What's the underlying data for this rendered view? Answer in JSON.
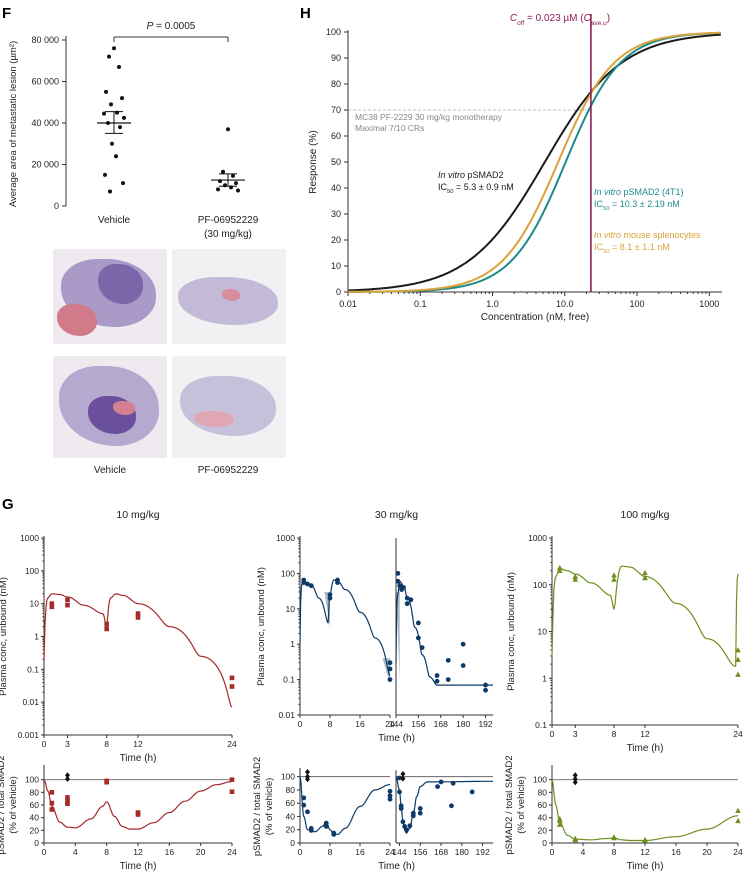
{
  "colors": {
    "red": "#a52a2a",
    "navy": "#0d3a66",
    "olive": "#6d8f1e",
    "black": "#1a1a1a",
    "teal": "#1f8a8a",
    "gold": "#d9a23a",
    "purple": "#8b1d5a",
    "grey": "#9a9a9a"
  },
  "panels": {
    "F": "F",
    "G": "G",
    "H": "H"
  },
  "chart_data": [
    {
      "id": "F-scatter",
      "type": "scatter",
      "ylabel": "Average area of metastatic lesion (µm²)",
      "ylim": [
        0,
        80000
      ],
      "yticks": [
        "0",
        "20 000",
        "40 000",
        "60 000",
        "80 000"
      ],
      "categories": [
        "Vehicle",
        "PF-06952229",
        "(30 mg/kg)"
      ],
      "significance": {
        "label": "P = 0.0005"
      },
      "series": [
        {
          "name": "Vehicle",
          "mean": 40000,
          "sem_low": 35000,
          "sem_high": 45500,
          "values": [
            76000,
            72000,
            67000,
            55000,
            52000,
            49000,
            45000,
            44500,
            42500,
            40000,
            38000,
            30000,
            24000,
            15000,
            11000,
            7000
          ]
        },
        {
          "name": "PF-06952229",
          "mean": 12500,
          "sem_low": 9500,
          "sem_high": 15500,
          "values": [
            37000,
            16500,
            14500,
            12000,
            11000,
            10000,
            9000,
            8000,
            7500
          ]
        }
      ]
    },
    {
      "id": "H-curves",
      "type": "line",
      "xlabel": "Concentration (nM, free)",
      "ylabel": "Response (%)",
      "xscale": "log",
      "xlim": [
        0.01,
        1500
      ],
      "ylim": [
        0,
        100
      ],
      "xticks": [
        "0.01",
        "0.1",
        "1.0",
        "10.0",
        "100",
        "1000"
      ],
      "yticks": [
        "0",
        "10",
        "20",
        "30",
        "40",
        "50",
        "60",
        "70",
        "80",
        "90",
        "100"
      ],
      "series": [
        {
          "name": "In vitro pSMAD2",
          "ic50": 5.3,
          "hill": 0.82,
          "color_key": "black"
        },
        {
          "name": "In vitro pSMAD2 (4T1)",
          "ic50": 10.3,
          "hill": 1.15,
          "color_key": "teal"
        },
        {
          "name": "In vitro mouse splenocytes",
          "ic50": 8.1,
          "hill": 1.12,
          "color_key": "gold"
        }
      ],
      "vline": {
        "x": 23
      },
      "hline": {
        "y": 70
      },
      "annotations": {
        "coff_a": "C",
        "coff_sub": "off",
        "coff_b": " = 0.023 µM (",
        "coff_c": "C",
        "coff_sub2": "ave,u",
        "coff_d": ")",
        "mc38_1": "MC38 PF-2229 30 mg/kg monotherapy",
        "mc38_2": "Maximal 7/10 CRs",
        "black_1a": "In vitro",
        "black_1b": " pSMAD2",
        "black_2a": "IC",
        "black_2sub": "50",
        "black_2b": " = 5.3 ± 0.9 nM",
        "teal_1a": "In vitro",
        "teal_1b": " pSMAD2 (4T1)",
        "teal_2a": "IC",
        "teal_2sub": "50",
        "teal_2b": " = 10.3 ± 2.19 nM",
        "gold_1a": "In vitro",
        "gold_1b": " mouse splenocytes",
        "gold_2a": "IC",
        "gold_2sub": "50",
        "gold_2b": " = 8.1 ± 1.1 nM"
      }
    },
    {
      "id": "G-pk-10",
      "type": "line",
      "title": "10 mg/kg",
      "xlabel": "Time (h)",
      "ylabel": "Plasma conc, unbound (nM)",
      "yscale": "log",
      "ylim": [
        0.001,
        1000
      ],
      "xlim": [
        0,
        24
      ],
      "yticks": [
        "0.001",
        "0.01",
        "0.1",
        "1",
        "10",
        "100",
        "1000"
      ],
      "xticks": [
        "0",
        "3",
        "8",
        "12",
        "24"
      ],
      "curve": [
        [
          0,
          0.2
        ],
        [
          0.5,
          15
        ],
        [
          1,
          20
        ],
        [
          2,
          19
        ],
        [
          3,
          16
        ],
        [
          5,
          9
        ],
        [
          7.5,
          5
        ],
        [
          8,
          1.8
        ],
        [
          8.5,
          15
        ],
        [
          9.2,
          20
        ],
        [
          10,
          18
        ],
        [
          12,
          10
        ],
        [
          16,
          2
        ],
        [
          20,
          0.25
        ],
        [
          24,
          0.007
        ]
      ],
      "points": [
        [
          1,
          10
        ],
        [
          1,
          8
        ],
        [
          3,
          13
        ],
        [
          3,
          9
        ],
        [
          8,
          2.4
        ],
        [
          8,
          1.7
        ],
        [
          12,
          5
        ],
        [
          12,
          3.8
        ],
        [
          24,
          0.055
        ],
        [
          24,
          0.03
        ]
      ]
    },
    {
      "id": "G-pk-30",
      "type": "line",
      "title": "30 mg/kg",
      "xlabel": "Time (h)",
      "ylabel": "Plasma conc, unbound (nM)",
      "yscale": "log",
      "ylim": [
        0.01,
        1000
      ],
      "yticks": [
        "0.01",
        "0.1",
        "1",
        "10",
        "100",
        "1000"
      ],
      "segment_a": {
        "xlim": [
          0,
          24
        ],
        "xticks": [
          "0",
          "8",
          "16",
          "24"
        ],
        "curve": [
          [
            0,
            1
          ],
          [
            0.5,
            50
          ],
          [
            1,
            60
          ],
          [
            2,
            55
          ],
          [
            3,
            45
          ],
          [
            5,
            20
          ],
          [
            7.5,
            4
          ],
          [
            8,
            25
          ],
          [
            9,
            65
          ],
          [
            10,
            60
          ],
          [
            12,
            35
          ],
          [
            16,
            8
          ],
          [
            20,
            1.5
          ],
          [
            24,
            0.13
          ]
        ],
        "bands": [
          [
            6.5,
            8,
            3,
            30
          ],
          [
            22,
            24,
            0.08,
            0.4
          ]
        ],
        "points": [
          [
            1,
            65
          ],
          [
            1,
            55
          ],
          [
            2,
            50
          ],
          [
            3,
            45
          ],
          [
            8,
            25
          ],
          [
            8,
            20
          ],
          [
            10,
            65
          ],
          [
            10,
            55
          ],
          [
            24,
            0.3
          ],
          [
            24,
            0.2
          ],
          [
            24,
            0.1
          ]
        ]
      },
      "segment_b": {
        "xlim": [
          144,
          196
        ],
        "xticks": [
          "144",
          "156",
          "168",
          "180",
          "192"
        ],
        "curve": [
          [
            144,
            0.3
          ],
          [
            145,
            25
          ],
          [
            146,
            60
          ],
          [
            148,
            45
          ],
          [
            150,
            20
          ],
          [
            154,
            3
          ],
          [
            158,
            0.5
          ],
          [
            162,
            0.12
          ],
          [
            166,
            0.07
          ],
          [
            196,
            0.07
          ]
        ],
        "bands": [
          [
            144,
            146,
            0.1,
            30
          ]
        ],
        "points": [
          [
            145,
            100
          ],
          [
            145,
            60
          ],
          [
            146,
            45
          ],
          [
            147,
            35
          ],
          [
            148,
            40
          ],
          [
            150,
            20
          ],
          [
            150,
            14
          ],
          [
            152,
            18
          ],
          [
            156,
            4
          ],
          [
            156,
            1.5
          ],
          [
            158,
            0.8
          ],
          [
            166,
            0.13
          ],
          [
            166,
            0.09
          ],
          [
            172,
            0.35
          ],
          [
            172,
            0.1
          ],
          [
            180,
            1
          ],
          [
            180,
            0.25
          ],
          [
            192,
            0.07
          ],
          [
            192,
            0.05
          ]
        ]
      }
    },
    {
      "id": "G-pk-100",
      "type": "line",
      "title": "100 mg/kg",
      "xlabel": "Time (h)",
      "ylabel": "Plasma conc, unbound (nM)",
      "yscale": "log",
      "ylim": [
        0.1,
        1000
      ],
      "xlim": [
        0,
        24
      ],
      "yticks": [
        "0.1",
        "1",
        "10",
        "100",
        "1000"
      ],
      "xticks": [
        "0",
        "3",
        "8",
        "12",
        "24"
      ],
      "curve": [
        [
          0,
          3
        ],
        [
          0.5,
          150
        ],
        [
          1,
          220
        ],
        [
          2,
          200
        ],
        [
          3,
          170
        ],
        [
          5,
          110
        ],
        [
          7.5,
          60
        ],
        [
          8,
          30
        ],
        [
          9,
          250
        ],
        [
          10,
          240
        ],
        [
          12,
          150
        ],
        [
          16,
          40
        ],
        [
          20,
          7
        ],
        [
          23.7,
          1.8
        ],
        [
          24,
          170
        ]
      ],
      "points": [
        [
          1,
          230
        ],
        [
          1,
          200
        ],
        [
          3,
          150
        ],
        [
          3,
          130
        ],
        [
          8,
          160
        ],
        [
          8,
          130
        ],
        [
          12,
          180
        ],
        [
          12,
          140
        ],
        [
          24,
          4
        ],
        [
          24,
          2.5
        ],
        [
          24,
          1.2
        ]
      ]
    },
    {
      "id": "G-pd-10",
      "type": "line",
      "xlabel": "Time (h)",
      "ylabel": "pSMAD2 / total SMAD2",
      "ylabel2": "(% of vehicle)",
      "ylim": [
        0,
        120
      ],
      "xlim": [
        0,
        24
      ],
      "yticks": [
        "0",
        "20",
        "40",
        "60",
        "80",
        "100"
      ],
      "xticks": [
        "0",
        "4",
        "8",
        "12",
        "16",
        "20",
        "24"
      ],
      "ref": 100,
      "curve": [
        [
          0,
          100
        ],
        [
          0.5,
          82
        ],
        [
          1,
          58
        ],
        [
          2,
          33
        ],
        [
          3,
          25
        ],
        [
          4,
          24
        ],
        [
          6,
          38
        ],
        [
          7.5,
          58
        ],
        [
          8,
          65
        ],
        [
          9,
          42
        ],
        [
          10,
          26
        ],
        [
          11,
          22
        ],
        [
          12,
          22
        ],
        [
          14,
          32
        ],
        [
          16,
          48
        ],
        [
          18,
          66
        ],
        [
          20,
          82
        ],
        [
          22,
          92
        ],
        [
          24,
          97
        ]
      ],
      "points": [
        [
          1,
          80
        ],
        [
          1,
          63
        ],
        [
          1,
          53
        ],
        [
          3,
          72
        ],
        [
          3,
          66
        ],
        [
          3,
          62
        ],
        [
          8,
          98
        ],
        [
          8,
          96
        ],
        [
          12,
          48
        ],
        [
          12,
          45
        ],
        [
          24,
          100
        ],
        [
          24,
          81
        ]
      ],
      "vehicle": [
        [
          3,
          107
        ],
        [
          3,
          101
        ]
      ]
    },
    {
      "id": "G-pd-30",
      "type": "line",
      "xlabel": "Time (h)",
      "ylabel": "pSMAD2 / total SMAD2",
      "ylabel2": "(% of vehicle)",
      "ylim": [
        0,
        110
      ],
      "yticks": [
        "0",
        "20",
        "40",
        "60",
        "80",
        "100"
      ],
      "ref": 100,
      "segment_a": {
        "xlim": [
          0,
          24
        ],
        "xticks": [
          "0",
          "8",
          "16",
          "24"
        ],
        "curve": [
          [
            0,
            100
          ],
          [
            1,
            40
          ],
          [
            2,
            20
          ],
          [
            4,
            17
          ],
          [
            6,
            25
          ],
          [
            7,
            32
          ],
          [
            8,
            20
          ],
          [
            9,
            14
          ],
          [
            10,
            13
          ],
          [
            12,
            22
          ],
          [
            16,
            55
          ],
          [
            20,
            80
          ],
          [
            24,
            88
          ]
        ],
        "points": [
          [
            1,
            68
          ],
          [
            1,
            57
          ],
          [
            2,
            47
          ],
          [
            3,
            22
          ],
          [
            3,
            19
          ],
          [
            7,
            30
          ],
          [
            7,
            25
          ],
          [
            9,
            15
          ],
          [
            9,
            13
          ],
          [
            24,
            78
          ],
          [
            24,
            71
          ],
          [
            24,
            66
          ]
        ],
        "vehicle": [
          [
            2,
            107
          ],
          [
            2,
            100
          ],
          [
            2,
            96
          ]
        ]
      },
      "segment_b": {
        "xlim": [
          142,
          198
        ],
        "xticks": [
          "144",
          "156",
          "168",
          "180",
          "192"
        ],
        "curve": [
          [
            142,
            100
          ],
          [
            144,
            80
          ],
          [
            145,
            55
          ],
          [
            146,
            32
          ],
          [
            147,
            20
          ],
          [
            148,
            15
          ],
          [
            150,
            22
          ],
          [
            152,
            45
          ],
          [
            154,
            70
          ],
          [
            156,
            85
          ],
          [
            160,
            92
          ],
          [
            198,
            93
          ]
        ],
        "points": [
          [
            144,
            98
          ],
          [
            144,
            77
          ],
          [
            145,
            56
          ],
          [
            145,
            52
          ],
          [
            146,
            32
          ],
          [
            147,
            25
          ],
          [
            148,
            20
          ],
          [
            150,
            26
          ],
          [
            152,
            45
          ],
          [
            152,
            41
          ],
          [
            156,
            52
          ],
          [
            156,
            45
          ],
          [
            166,
            85
          ],
          [
            168,
            92
          ],
          [
            174,
            56
          ],
          [
            175,
            90
          ],
          [
            186,
            77
          ]
        ],
        "vehicle": [
          [
            146,
            104
          ],
          [
            146,
            97
          ]
        ]
      }
    },
    {
      "id": "G-pd-100",
      "type": "line",
      "xlabel": "Time (h)",
      "ylabel": "pSMAD2 / total SMAD2",
      "ylabel2": "(% of vehicle)",
      "ylim": [
        0,
        120
      ],
      "xlim": [
        0,
        24
      ],
      "yticks": [
        "0",
        "20",
        "40",
        "60",
        "80",
        "100"
      ],
      "xticks": [
        "0",
        "4",
        "8",
        "12",
        "16",
        "20",
        "24"
      ],
      "ref": 100,
      "curve": [
        [
          0,
          100
        ],
        [
          0.5,
          60
        ],
        [
          1,
          32
        ],
        [
          2,
          12
        ],
        [
          3,
          6
        ],
        [
          5,
          5
        ],
        [
          7,
          7
        ],
        [
          8,
          8
        ],
        [
          9,
          5
        ],
        [
          10,
          4
        ],
        [
          12,
          4
        ],
        [
          16,
          10
        ],
        [
          20,
          22
        ],
        [
          24,
          43
        ]
      ],
      "points": [
        [
          1,
          38
        ],
        [
          1,
          35
        ],
        [
          1,
          29
        ],
        [
          3,
          7
        ],
        [
          3,
          5
        ],
        [
          3,
          5
        ],
        [
          8,
          9
        ],
        [
          8,
          8
        ],
        [
          12,
          5
        ],
        [
          12,
          4
        ],
        [
          24,
          51
        ],
        [
          24,
          35
        ]
      ],
      "vehicle": [
        [
          3,
          107
        ],
        [
          3,
          101
        ],
        [
          3,
          96
        ]
      ]
    }
  ],
  "images": {
    "vehicle_label": "Vehicle",
    "drug_label": "PF-06952229"
  }
}
